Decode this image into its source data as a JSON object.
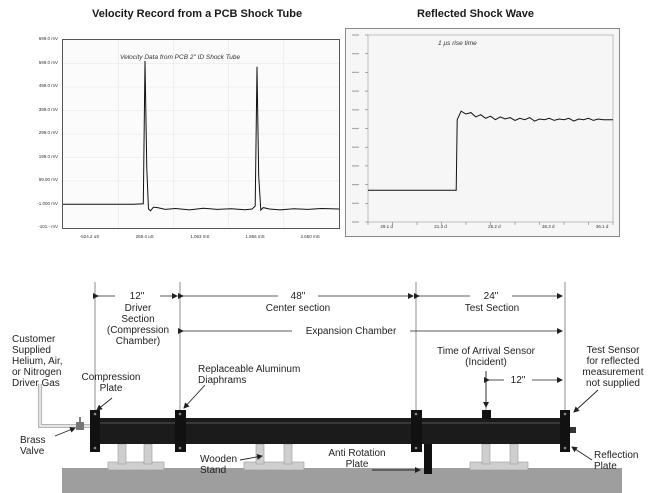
{
  "chart_data": [
    {
      "type": "line",
      "title": "Velocity Record from a PCB Shock Tube",
      "annotation": "Velocity Data from PCB 2\" ID Shock Tube",
      "y_tick_labels": [
        "699.0 mV",
        "599.0 mV",
        "499.0 mV",
        "399.0 mV",
        "299.0 mV",
        "199.0 mV",
        "99.00 mV",
        "-1.000 mV",
        "-101.- mV"
      ],
      "x_tick_labels": [
        "-524.2 uS",
        "269.4 uS",
        "1.063 mS",
        "1.856 mS",
        "2.650 mS"
      ],
      "x_unit": "uS",
      "ylim": [
        -101,
        699
      ],
      "xlim": [
        -920,
        3050
      ],
      "series": [
        {
          "x": [
            -920,
            -300,
            100,
            235,
            260,
            285,
            310,
            340,
            380,
            450,
            550,
            700,
            900,
            1100,
            1300,
            1500,
            1700,
            1800,
            1845,
            1870,
            1895,
            1925,
            1960,
            2050,
            2200,
            2400,
            2600,
            2800,
            3050
          ],
          "values": [
            0,
            0,
            0,
            2,
            610,
            150,
            -20,
            -28,
            -12,
            -15,
            -22,
            -18,
            -24,
            -17,
            -22,
            -19,
            -23,
            -20,
            -8,
            585,
            120,
            -25,
            -14,
            -20,
            -24,
            -19,
            -22,
            -18,
            -20
          ]
        }
      ]
    },
    {
      "type": "line",
      "title": "Reflected Shock Wave",
      "annotation": "1 µs rise time",
      "x_tick_labels": [
        "29.1 d",
        "21.3 d",
        "25.2 d",
        "36.3 d",
        "36.1 d"
      ],
      "x": [
        0,
        36,
        36.4,
        38,
        40,
        42,
        44,
        46,
        48,
        50,
        52,
        54,
        56,
        58,
        60,
        62,
        64,
        66,
        68,
        70,
        72,
        74,
        76,
        78,
        80,
        82,
        84,
        86,
        88,
        90,
        92,
        94,
        96,
        100
      ],
      "values": [
        0,
        0,
        1,
        1.12,
        1.08,
        1.1,
        1.04,
        1.07,
        1.02,
        1.05,
        1.0,
        1.04,
        1.01,
        1.03,
        0.99,
        1.02,
        1.0,
        1.03,
        0.98,
        1.01,
        1.0,
        1.02,
        0.99,
        1.01,
        1.0,
        1.02,
        0.98,
        1.01,
        1.0,
        1.02,
        0.99,
        1.01,
        1.0,
        1.0
      ],
      "xlim": [
        0,
        100
      ],
      "ylim": [
        -0.45,
        2.2
      ]
    }
  ],
  "diagram": {
    "dims": {
      "driver": "12\"",
      "center": "48\"",
      "test": "24\"",
      "sensor_offset": "12\""
    },
    "labels": {
      "driver_section": "Driver\nSection\n(Compression\nChamber)",
      "center_section": "Center section",
      "test_section": "Test Section",
      "expansion_chamber": "Expansion Chamber",
      "gas_supply": "Customer\nSupplied\nHelium, Air,\nor Nitrogen\nDriver Gas",
      "compression_plate": "Compression\nPlate",
      "diaphrams": "Replaceable Aluminum\nDiaphrams",
      "arrival_sensor": "Time of  Arrival Sensor\n(Incident)",
      "test_sensor": "Test Sensor\nfor reflected\nmeasurement\nnot supplied",
      "brass_valve": "Brass\nValve",
      "wooden_stand": "Wooden\nStand",
      "anti_rotation": "Anti Rotation\nPlate",
      "reflection_plate": "Reflection\nPlate"
    }
  }
}
